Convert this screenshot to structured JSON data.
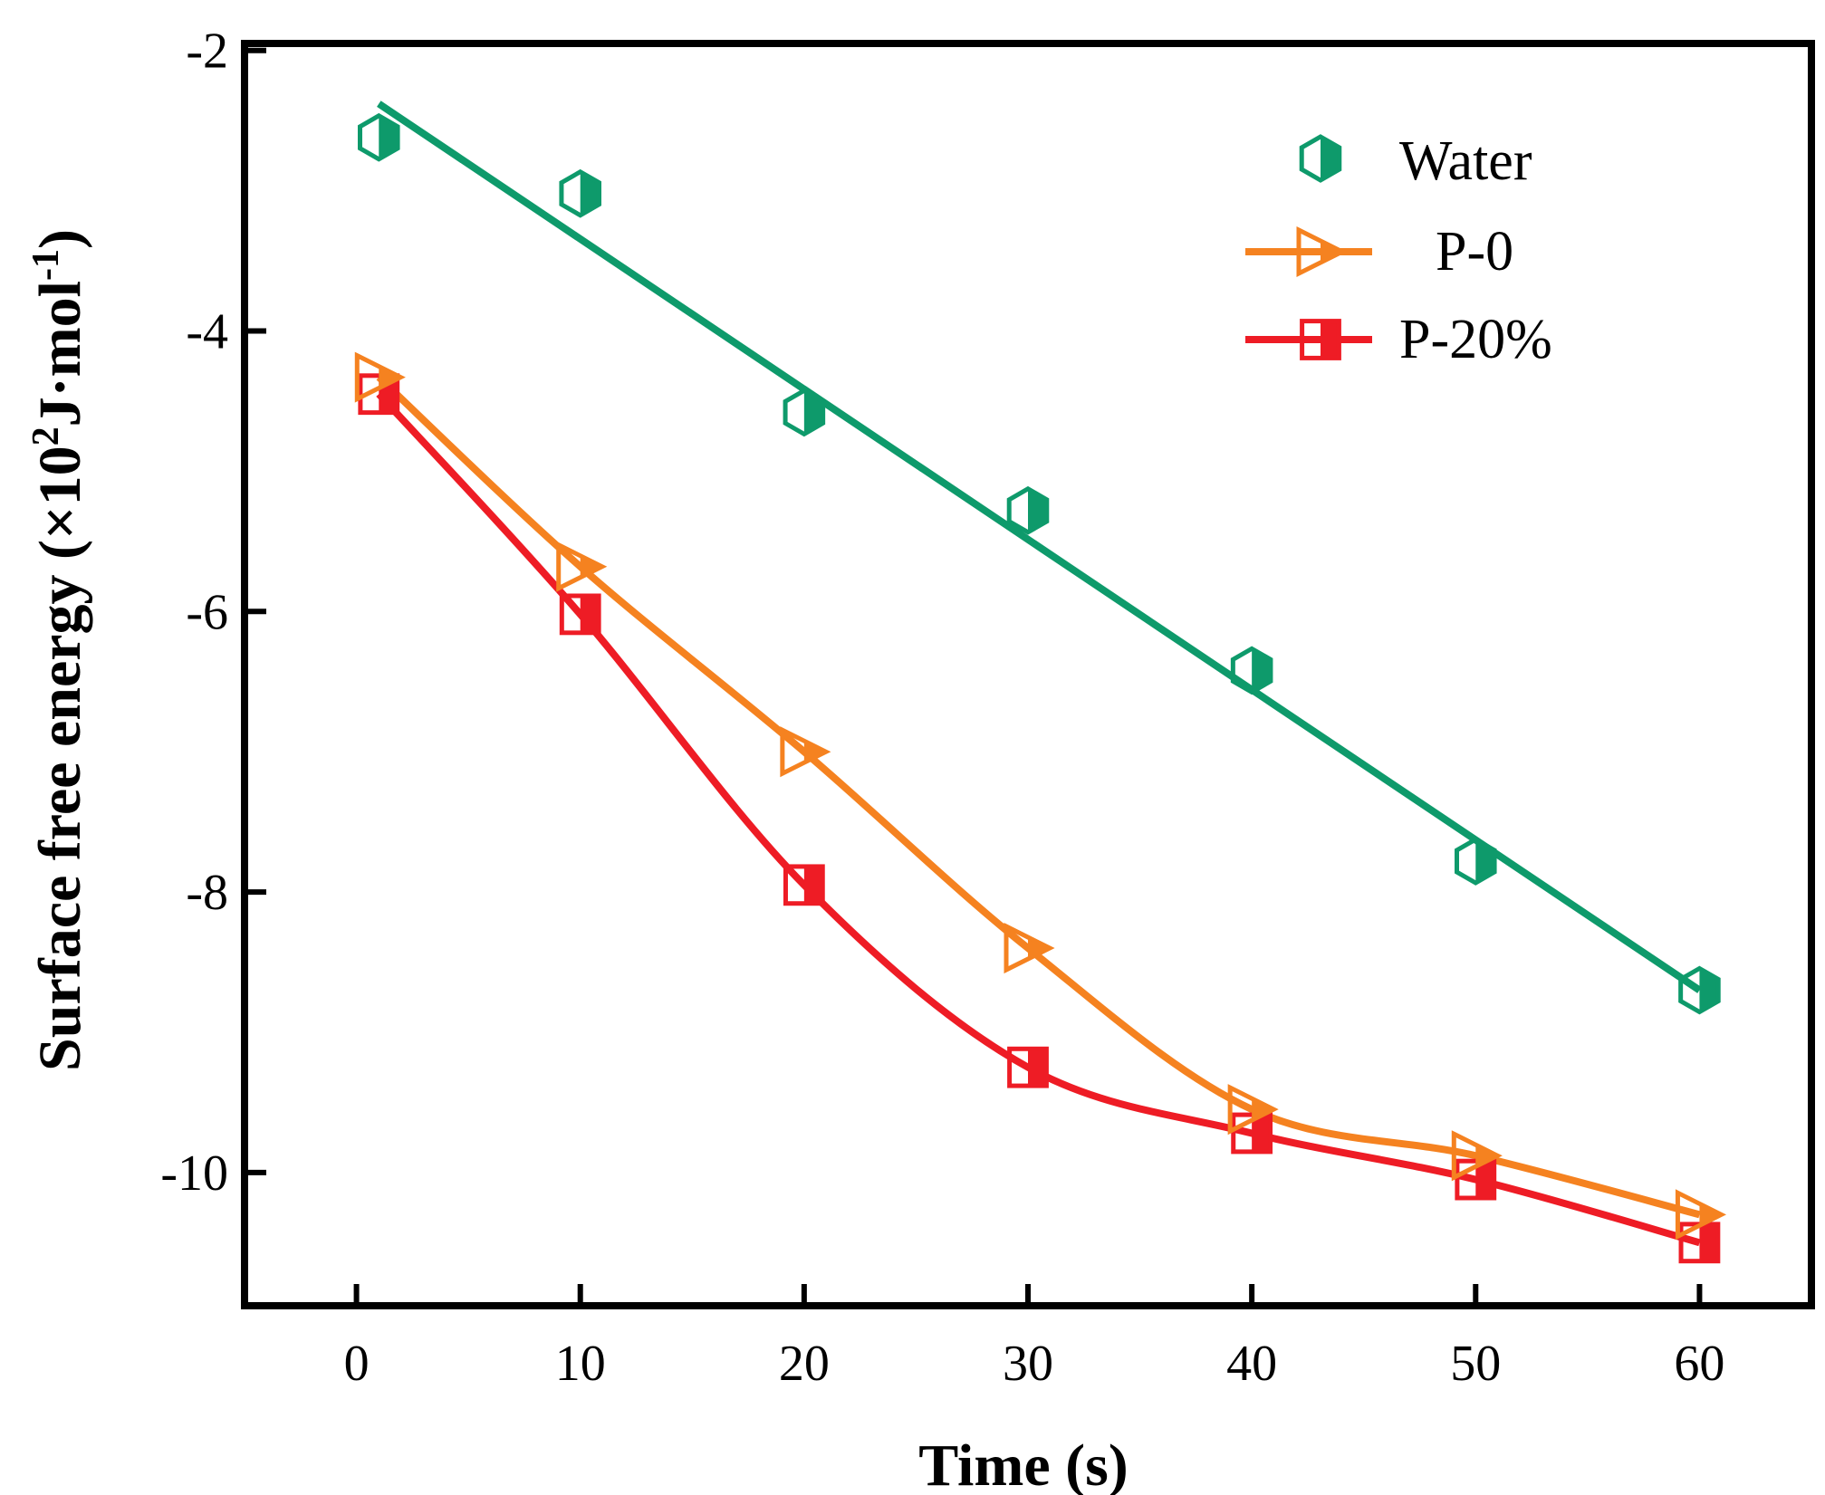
{
  "chart_data": {
    "type": "scatter",
    "title": "",
    "xlabel": "Time (s)",
    "ylabel": {
      "main": "Surface free energy (×10",
      "sup1": "2",
      "mid": "J·mol",
      "sup2": "-1",
      "end": ")"
    },
    "xlim": [
      -5,
      65
    ],
    "ylim": [
      -10.95,
      -1.95
    ],
    "xticks": [
      "0",
      "10",
      "20",
      "30",
      "40",
      "50",
      "60"
    ],
    "yticks": [
      "-2",
      "-4",
      "-6",
      "-8",
      "-10"
    ],
    "grid": false,
    "legend_position": "top-right",
    "series": [
      {
        "name": "Water",
        "color": "#0e9a6b",
        "marker": "hexagon-half",
        "x": [
          1,
          10,
          20,
          30,
          40,
          50,
          60
        ],
        "y": [
          -2.62,
          -3.02,
          -4.58,
          -5.28,
          -6.42,
          -7.78,
          -8.7
        ],
        "fit": {
          "kind": "linear",
          "x": [
            1,
            60
          ],
          "y": [
            -2.38,
            -8.7
          ]
        }
      },
      {
        "name": "P-0",
        "color": "#f58220",
        "marker": "triangle-right-half",
        "x": [
          1,
          10,
          20,
          30,
          40,
          50,
          60
        ],
        "y": [
          -4.33,
          -5.68,
          -7.0,
          -8.4,
          -9.55,
          -9.88,
          -10.3
        ]
      },
      {
        "name": "P-20%",
        "color": "#ee1c25",
        "marker": "square-half",
        "x": [
          1,
          10,
          20,
          30,
          40,
          50,
          60
        ],
        "y": [
          -4.45,
          -6.02,
          -7.95,
          -9.25,
          -9.72,
          -10.05,
          -10.5
        ]
      }
    ]
  }
}
